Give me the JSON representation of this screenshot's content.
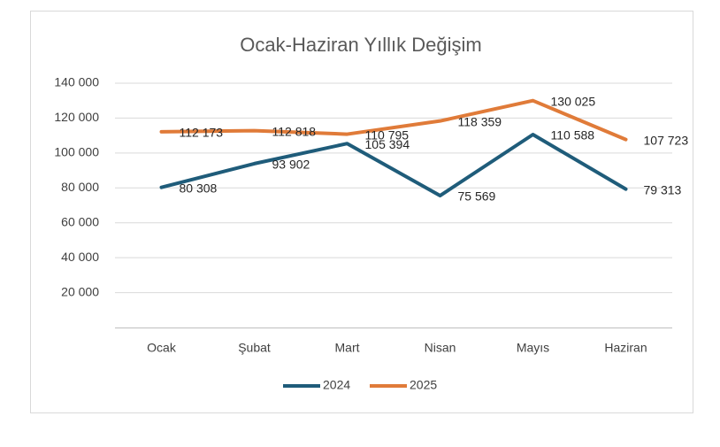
{
  "chart_data": {
    "type": "line",
    "title": "Ocak-Haziran Yıllık Değişim",
    "categories": [
      "Ocak",
      "Şubat",
      "Mart",
      "Nisan",
      "Mayıs",
      "Haziran"
    ],
    "series": [
      {
        "name": "2024",
        "color": "#1f5c7a",
        "values": [
          80308,
          93902,
          105394,
          75569,
          110588,
          79313
        ],
        "value_labels": [
          "80 308",
          "93 902",
          "105 394",
          "75 569",
          "110 588",
          "79 313"
        ]
      },
      {
        "name": "2025",
        "color": "#e07b39",
        "values": [
          112173,
          112818,
          110795,
          118359,
          130025,
          107723
        ],
        "value_labels": [
          "112 173",
          "112 818",
          "110 795",
          "118 359",
          "130 025",
          "107 723"
        ]
      }
    ],
    "ylim": [
      0,
      140000
    ],
    "yticks": [
      {
        "value": 20000,
        "label": "20 000"
      },
      {
        "value": 40000,
        "label": "40 000"
      },
      {
        "value": 60000,
        "label": "60 000"
      },
      {
        "value": 80000,
        "label": "80 000"
      },
      {
        "value": 100000,
        "label": "100 000"
      },
      {
        "value": 120000,
        "label": "120 000"
      },
      {
        "value": 140000,
        "label": "140 000"
      }
    ],
    "grid": true,
    "legend": "bottom"
  }
}
